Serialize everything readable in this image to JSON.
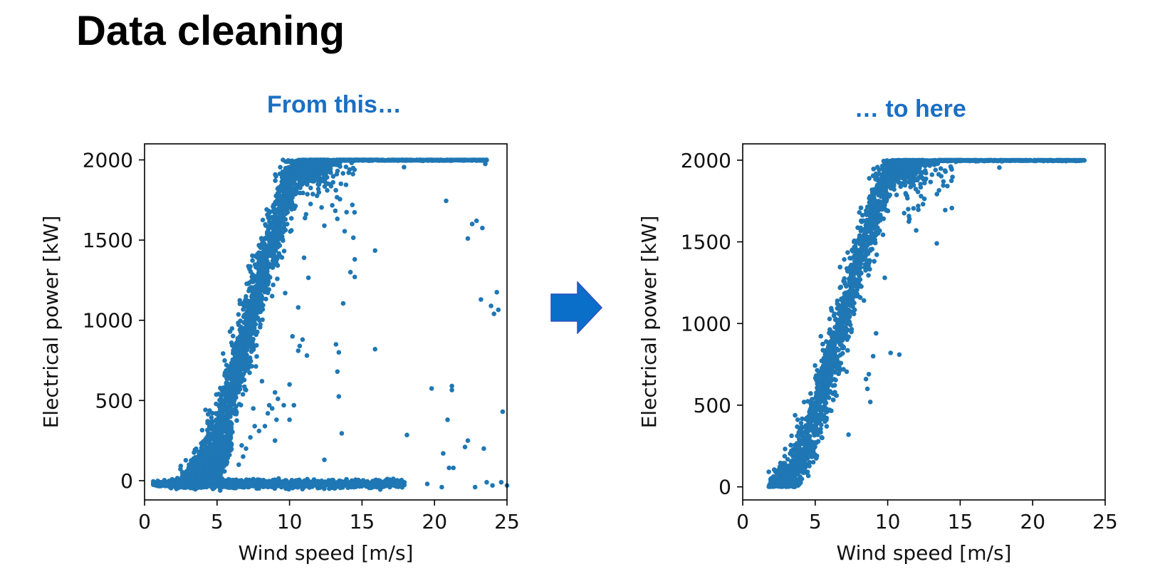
{
  "slide": {
    "title": "Data cleaning"
  },
  "colors": {
    "caption": "#1a6fc4",
    "points": "#1f77b4",
    "arrow_fill": "#0a6fc9",
    "arrow_stroke": "#2f4fbf"
  },
  "arrow_icon": "right-arrow-icon",
  "chart_data": [
    {
      "type": "scatter",
      "caption": "From this…",
      "xlabel": "Wind speed [m/s]",
      "ylabel": "Electrical power [kW]",
      "xlim": [
        0,
        25
      ],
      "ylim": [
        -120,
        2100
      ],
      "xticks": [
        0,
        5,
        10,
        15,
        20,
        25
      ],
      "yticks": [
        0,
        500,
        1000,
        1500,
        2000
      ],
      "grid": false,
      "legend": "none",
      "band": {
        "x_start": 3.0,
        "x_rated": 11.5,
        "x_end": 23.6,
        "rated_power": 2000
      },
      "curtailed_band": {
        "x_start": 2.2,
        "x_end": 18,
        "power": -20
      },
      "outliers": [
        [
          20.8,
          1745
        ],
        [
          22.9,
          1620
        ],
        [
          22.3,
          1510
        ],
        [
          23.3,
          1575
        ],
        [
          22.6,
          1600
        ],
        [
          24.3,
          1175
        ],
        [
          23.9,
          1090
        ],
        [
          24.4,
          1065
        ],
        [
          24.1,
          1040
        ],
        [
          23.2,
          1130
        ],
        [
          24.7,
          430
        ],
        [
          19.8,
          575
        ],
        [
          21.2,
          590
        ],
        [
          21.2,
          565
        ],
        [
          20.9,
          380
        ],
        [
          22.3,
          250
        ],
        [
          22.1,
          210
        ],
        [
          23.4,
          200
        ],
        [
          20.6,
          170
        ],
        [
          21.0,
          80
        ],
        [
          21.3,
          80
        ],
        [
          18.1,
          285
        ],
        [
          15.9,
          820
        ],
        [
          15.9,
          1435
        ],
        [
          14.2,
          1300
        ],
        [
          14.5,
          1380
        ],
        [
          13.8,
          1555
        ],
        [
          14.4,
          1515
        ],
        [
          13.7,
          1105
        ],
        [
          14.5,
          1270
        ],
        [
          13.2,
          850
        ],
        [
          13.4,
          800
        ],
        [
          13.3,
          680
        ],
        [
          13.4,
          525
        ],
        [
          13.6,
          295
        ],
        [
          12.4,
          130
        ],
        [
          12.0,
          1950
        ],
        [
          13.0,
          1860
        ],
        [
          12.4,
          1590
        ],
        [
          11.3,
          1265
        ],
        [
          10.2,
          900
        ],
        [
          10.6,
          810
        ],
        [
          10.7,
          840
        ],
        [
          10.9,
          880
        ],
        [
          11.2,
          780
        ],
        [
          10.0,
          600
        ],
        [
          9.6,
          470
        ],
        [
          10.3,
          470
        ],
        [
          10.0,
          380
        ],
        [
          9.1,
          380
        ],
        [
          9.2,
          510
        ],
        [
          9.0,
          550
        ],
        [
          8.8,
          450
        ],
        [
          8.5,
          420
        ],
        [
          8.1,
          620
        ],
        [
          8.3,
          340
        ],
        [
          7.9,
          310
        ],
        [
          7.6,
          340
        ],
        [
          7.3,
          270
        ],
        [
          7.0,
          200
        ],
        [
          6.8,
          150
        ],
        [
          6.5,
          100
        ],
        [
          6.7,
          220
        ],
        [
          7.5,
          450
        ],
        [
          8.6,
          470
        ],
        [
          9.0,
          250
        ],
        [
          10.6,
          1080
        ],
        [
          11.0,
          1390
        ],
        [
          9.7,
          1170
        ],
        [
          17.9,
          1955
        ],
        [
          23.5,
          1975
        ],
        [
          24.6,
          -10
        ],
        [
          24.0,
          -30
        ],
        [
          25.0,
          -30
        ],
        [
          19.5,
          -20
        ],
        [
          20.5,
          -40
        ],
        [
          22.8,
          -40
        ],
        [
          23.6,
          -10
        ]
      ],
      "panel_caption_color": "#1a6fc4"
    },
    {
      "type": "scatter",
      "caption": "… to here",
      "xlabel": "Wind speed [m/s]",
      "ylabel": "Electrical power [kW]",
      "xlim": [
        0,
        25
      ],
      "ylim": [
        -80,
        2100
      ],
      "xticks": [
        0,
        5,
        10,
        15,
        20,
        25
      ],
      "yticks": [
        0,
        500,
        1000,
        1500,
        2000
      ],
      "grid": false,
      "legend": "none",
      "band": {
        "x_start": 2.3,
        "x_rated": 11.3,
        "x_end": 23.6,
        "rated_power": 2000
      },
      "outliers": [
        [
          10.2,
          820
        ],
        [
          10.8,
          810
        ],
        [
          9.0,
          800
        ],
        [
          8.7,
          690
        ],
        [
          8.5,
          660
        ],
        [
          8.6,
          600
        ],
        [
          8.8,
          520
        ],
        [
          7.3,
          320
        ],
        [
          9.2,
          940
        ],
        [
          11.5,
          1640
        ],
        [
          12.3,
          1780
        ],
        [
          12.5,
          1880
        ],
        [
          13.3,
          1940
        ],
        [
          14.7,
          1990
        ],
        [
          17.7,
          1955
        ],
        [
          12.1,
          1720
        ],
        [
          9.8,
          1280
        ]
      ],
      "panel_caption_color": "#1a6fc4"
    }
  ]
}
